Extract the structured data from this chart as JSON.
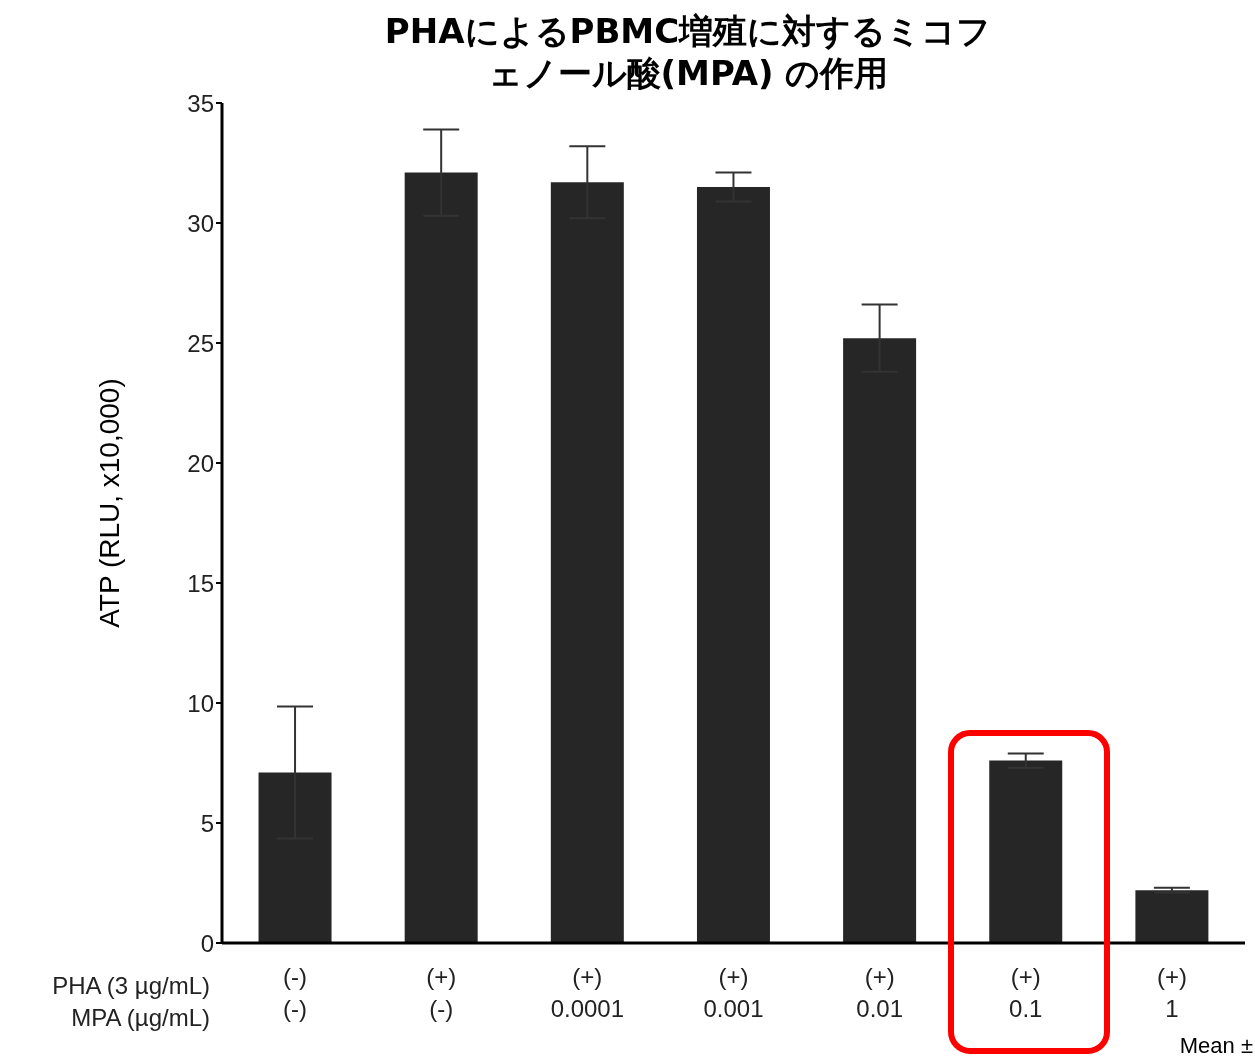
{
  "chart_data": {
    "type": "bar",
    "title": "PHAによるPBMC増殖に対するミコフェノール酸(MPA) の作用",
    "ylabel": "ATP (RLU, x10,000)",
    "xlabel": "PHA (3 µg/mL)\nMPA (µg/mL)",
    "categories": [
      "(-)\n(-)",
      "(+)\n(-)",
      "(+)\n0.0001",
      "(+)\n0.001",
      "(+)\n0.01",
      "(+)\n0.1",
      "(+)\n1"
    ],
    "values": [
      7.1,
      32.1,
      31.7,
      31.5,
      25.2,
      7.6,
      2.2
    ],
    "errors": [
      2.75,
      1.8,
      1.5,
      0.6,
      1.4,
      0.3,
      0.1
    ],
    "color": "#262626",
    "ylim": [
      0,
      35
    ],
    "yticks": [
      0,
      5,
      10,
      15,
      20,
      25,
      30,
      35
    ],
    "grid": false,
    "legend": false,
    "annotations": [
      "Mean ±"
    ]
  }
}
